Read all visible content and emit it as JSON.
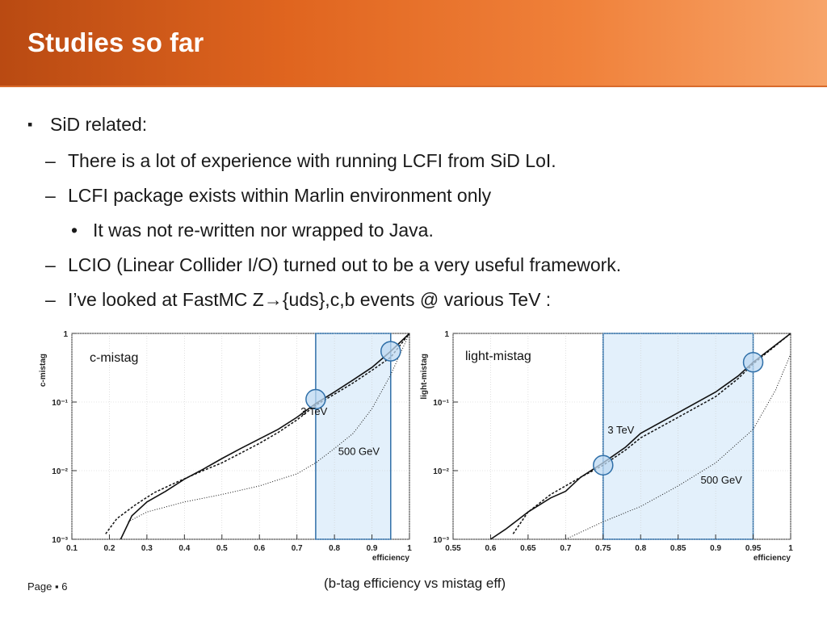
{
  "header": {
    "title": "Studies so far"
  },
  "bullets": {
    "b1": {
      "marker": "▪",
      "text": "SiD related:"
    },
    "b2": {
      "marker": "–",
      "text": "There is a lot of experience with running LCFI from SiD LoI."
    },
    "b3": {
      "marker": "–",
      "text": "LCFI package exists within Marlin environment only"
    },
    "b4": {
      "marker": "•",
      "text": "It was not re-written nor wrapped to Java."
    },
    "b5": {
      "marker": "–",
      "text": "LCIO (Linear Collider I/O) turned out to be a very useful framework."
    },
    "b6": {
      "marker": "–",
      "text": "I’ve looked at FastMC Z→{uds},c,b events @  various TeV :"
    }
  },
  "chart_data": [
    {
      "type": "line",
      "annotation": "c-mistag",
      "xlabel": "efficiency",
      "ylabel": "c-mistag",
      "xlim": [
        0.1,
        1
      ],
      "ylim": [
        0.001,
        1
      ],
      "log_y": true,
      "x_ticks": [
        "0.1",
        "0.2",
        "0.3",
        "0.4",
        "0.5",
        "0.6",
        "0.7",
        "0.8",
        "0.9",
        "1"
      ],
      "y_ticks": [
        "1",
        "10⁻¹",
        "10⁻²",
        "10⁻³"
      ],
      "highlight_band": [
        0.75,
        0.95
      ],
      "labels": [
        {
          "text": "3 TeV",
          "x": 0.71,
          "y": 0.065
        },
        {
          "text": "500 GeV",
          "x": 0.81,
          "y": 0.017
        }
      ],
      "markers": [
        {
          "x": 0.75,
          "y": 0.11
        },
        {
          "x": 0.95,
          "y": 0.55
        }
      ],
      "series": [
        {
          "style": "solid",
          "x": [
            0.23,
            0.26,
            0.3,
            0.35,
            0.4,
            0.45,
            0.5,
            0.55,
            0.6,
            0.65,
            0.7,
            0.75,
            0.8,
            0.85,
            0.9,
            0.95,
            1.0
          ],
          "y": [
            0.001,
            0.0022,
            0.0035,
            0.005,
            0.0075,
            0.0105,
            0.015,
            0.021,
            0.029,
            0.04,
            0.06,
            0.095,
            0.14,
            0.21,
            0.32,
            0.55,
            1.0
          ]
        },
        {
          "style": "dashed",
          "x": [
            0.19,
            0.22,
            0.27,
            0.32,
            0.38,
            0.44,
            0.5,
            0.55,
            0.6,
            0.65,
            0.7,
            0.75,
            0.8,
            0.85,
            0.9,
            0.95,
            1.0
          ],
          "y": [
            0.0012,
            0.002,
            0.0032,
            0.0048,
            0.0068,
            0.0095,
            0.013,
            0.018,
            0.025,
            0.036,
            0.055,
            0.09,
            0.13,
            0.19,
            0.29,
            0.45,
            1.0
          ]
        },
        {
          "style": "dotted",
          "x": [
            0.25,
            0.3,
            0.4,
            0.5,
            0.6,
            0.7,
            0.75,
            0.8,
            0.85,
            0.9,
            0.95,
            1.0
          ],
          "y": [
            0.0018,
            0.0025,
            0.0035,
            0.0045,
            0.006,
            0.009,
            0.013,
            0.021,
            0.035,
            0.08,
            0.25,
            1.0
          ]
        }
      ]
    },
    {
      "type": "line",
      "annotation": "light-mistag",
      "xlabel": "efficiency",
      "ylabel": "light-mistag",
      "xlim": [
        0.55,
        1
      ],
      "ylim": [
        0.001,
        1
      ],
      "log_y": true,
      "x_ticks": [
        "0.55",
        "0.6",
        "0.65",
        "0.7",
        "0.75",
        "0.8",
        "0.85",
        "0.9",
        "0.95",
        "1"
      ],
      "y_ticks": [
        "1",
        "10⁻¹",
        "10⁻²",
        "10⁻³"
      ],
      "highlight_band": [
        0.75,
        0.95
      ],
      "labels": [
        {
          "text": "3 TeV",
          "x": 0.756,
          "y": 0.035
        },
        {
          "text": "500 GeV",
          "x": 0.88,
          "y": 0.0065
        }
      ],
      "markers": [
        {
          "x": 0.75,
          "y": 0.012
        },
        {
          "x": 0.95,
          "y": 0.38
        }
      ],
      "series": [
        {
          "style": "solid",
          "x": [
            0.6,
            0.62,
            0.65,
            0.68,
            0.7,
            0.72,
            0.75,
            0.78,
            0.8,
            0.85,
            0.9,
            0.93,
            0.95,
            1.0
          ],
          "y": [
            0.001,
            0.0014,
            0.0025,
            0.004,
            0.005,
            0.008,
            0.013,
            0.022,
            0.035,
            0.07,
            0.14,
            0.24,
            0.38,
            1.0
          ]
        },
        {
          "style": "dashed",
          "x": [
            0.63,
            0.65,
            0.68,
            0.7,
            0.72,
            0.75,
            0.78,
            0.8,
            0.85,
            0.9,
            0.93,
            0.95,
            1.0
          ],
          "y": [
            0.0012,
            0.0025,
            0.0045,
            0.006,
            0.008,
            0.012,
            0.02,
            0.03,
            0.06,
            0.12,
            0.22,
            0.36,
            1.0
          ]
        },
        {
          "style": "dotted",
          "x": [
            0.7,
            0.75,
            0.8,
            0.85,
            0.9,
            0.95,
            0.98,
            1.0
          ],
          "y": [
            0.001,
            0.0018,
            0.003,
            0.006,
            0.013,
            0.04,
            0.15,
            0.5
          ]
        }
      ]
    }
  ],
  "caption": "(b-tag efficiency vs mistag eff)",
  "footer": {
    "page_label": "Page ▪ 6"
  }
}
